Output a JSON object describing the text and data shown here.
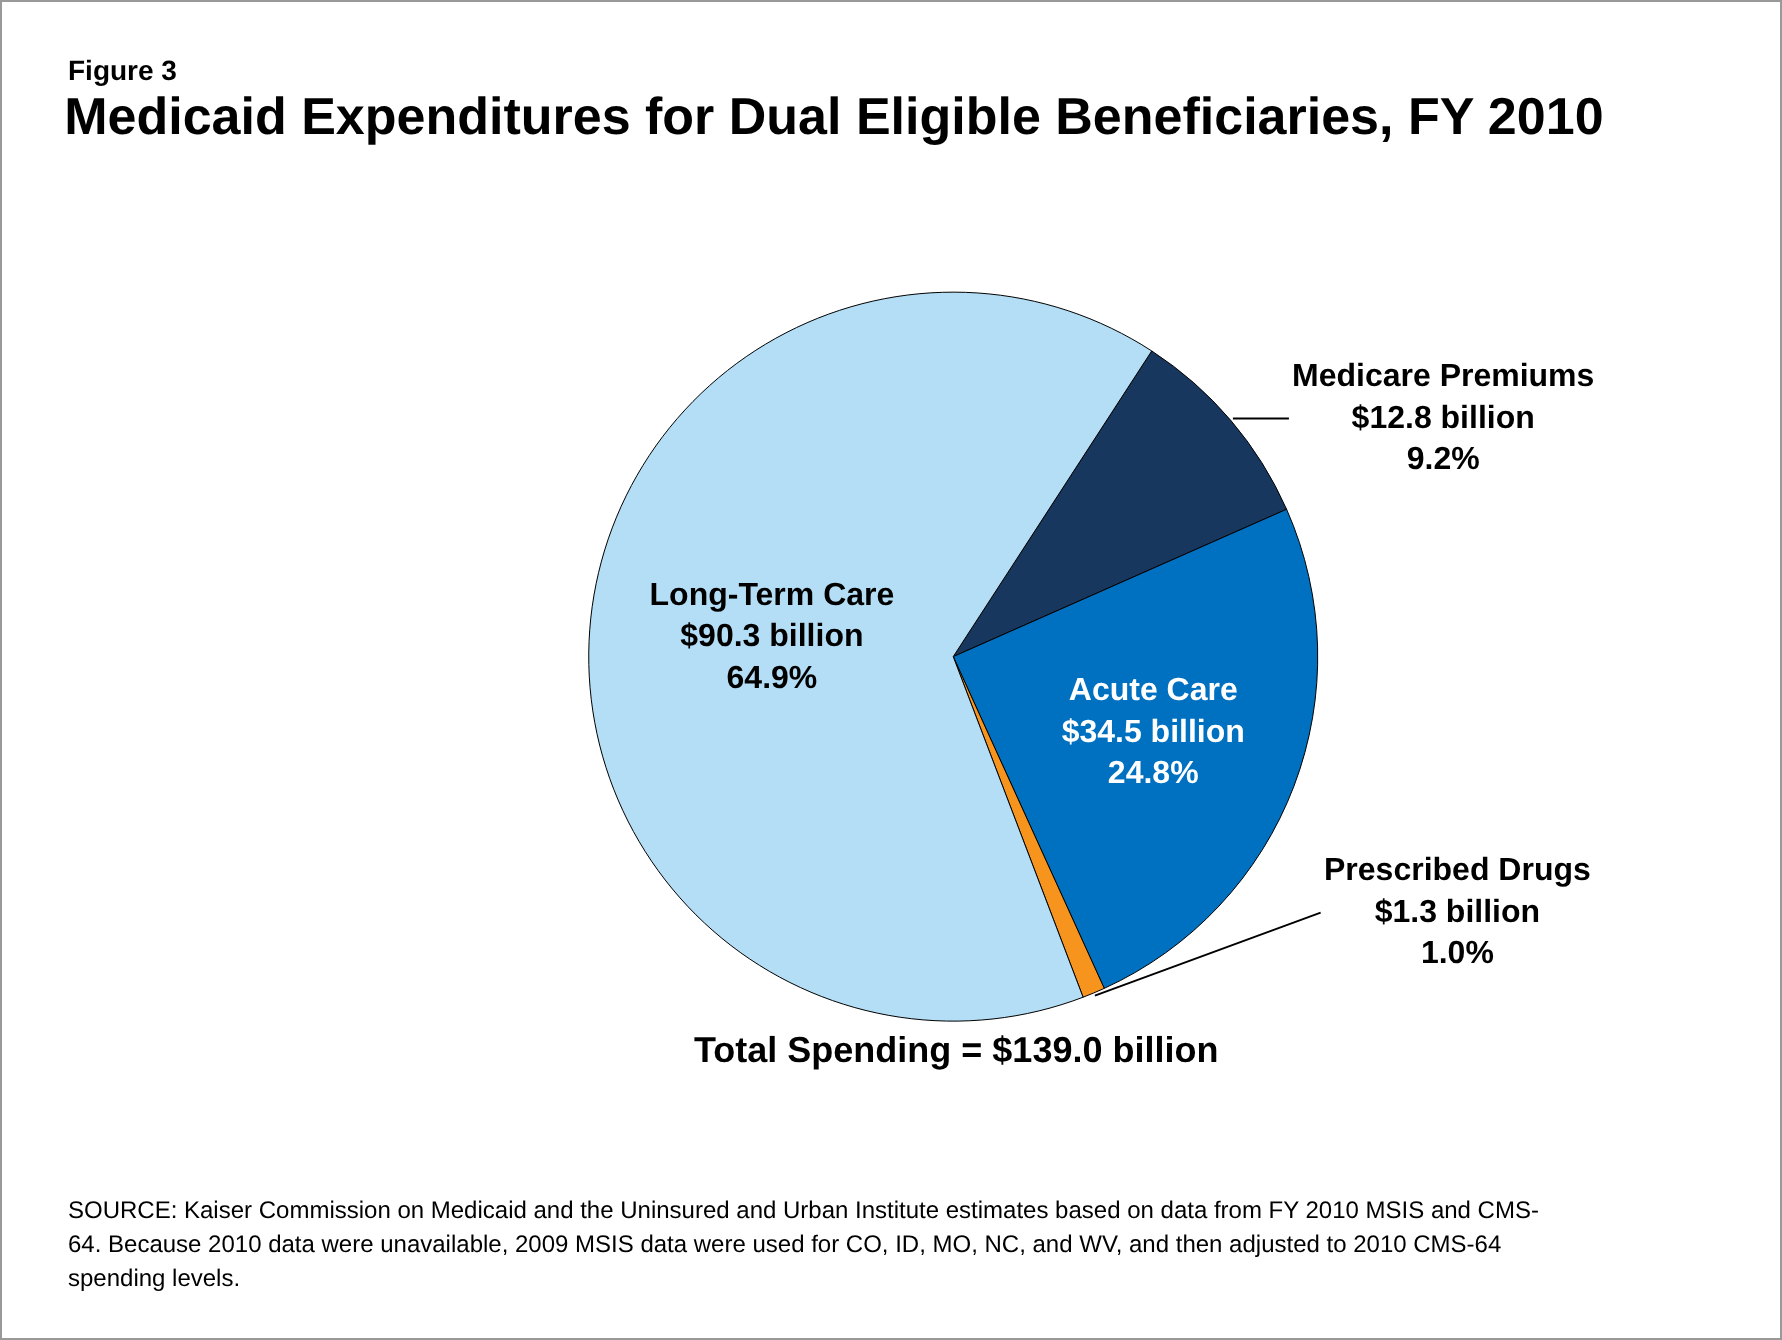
{
  "chart_data": {
    "type": "pie",
    "title": "Medicaid Expenditures for Dual Eligible Beneficiaries, FY 2010",
    "categories": [
      "Medicare Premiums",
      "Acute Care",
      "Prescribed Drugs",
      "Long-Term Care"
    ],
    "values": [
      9.2,
      24.8,
      1.0,
      64.9
    ],
    "colors": [
      "#17375e",
      "#0070c0",
      "#f7941d",
      "#b3def5"
    ],
    "value_labels": [
      "$12.8 billion\n9.2%",
      "$34.5 billion\n24.8%",
      "$1.3 billion\n1.0%",
      "$90.3 billion\n64.9%"
    ],
    "legend": false,
    "annotations": [
      "Figure 3",
      "Total Spending = $139.0 billion",
      "SOURCE:  Kaiser Commission on Medicaid and the Uninsured and Urban Institute estimates based on data from FY 2010 MSIS and CMS-64. Because 2010 data were unavailable, 2009 MSIS data were used for CO, ID, MO, NC, and WV, and then adjusted to 2010 CMS-64 spending levels."
    ]
  }
}
